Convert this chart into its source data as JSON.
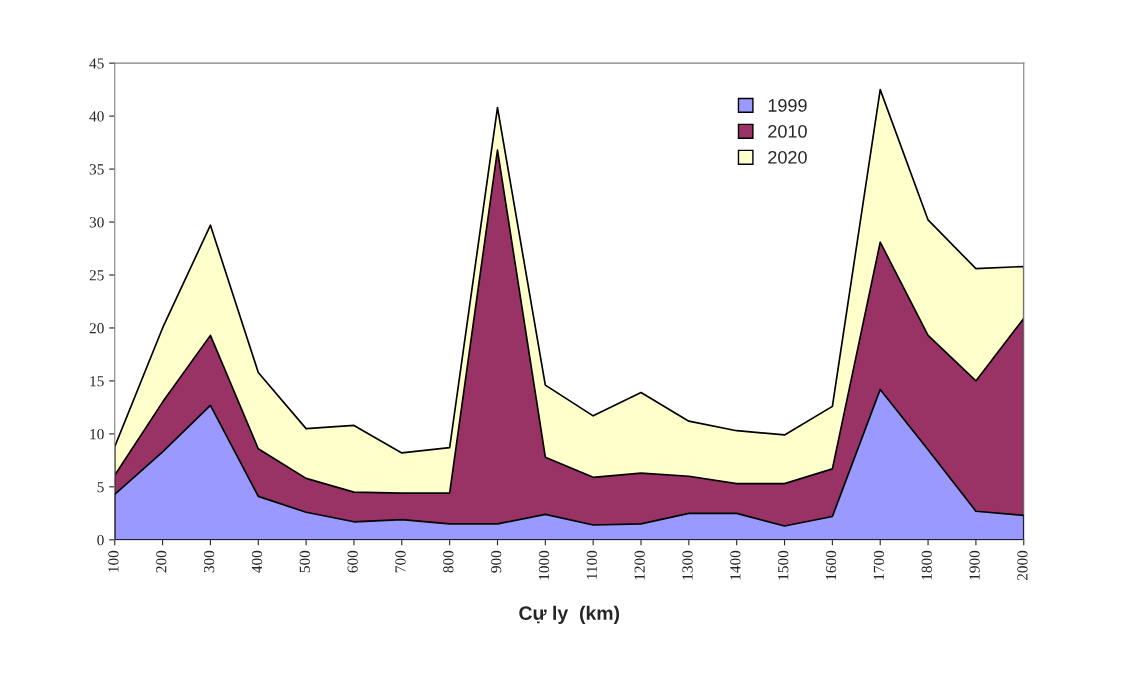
{
  "chart_data": {
    "type": "area",
    "xlabel": "Cự ly  (km)",
    "x": [
      100,
      200,
      300,
      400,
      500,
      600,
      700,
      800,
      900,
      1000,
      1100,
      1200,
      1300,
      1400,
      1500,
      1600,
      1700,
      1800,
      1900,
      2000
    ],
    "xlim": [
      100,
      2000
    ],
    "xticks": [
      100,
      200,
      300,
      400,
      500,
      600,
      700,
      800,
      900,
      1000,
      1100,
      1200,
      1300,
      1400,
      1500,
      1600,
      1700,
      1800,
      1900,
      2000
    ],
    "ylim": [
      0,
      45
    ],
    "yticks": [
      0,
      5,
      10,
      15,
      20,
      25,
      30,
      35,
      40,
      45
    ],
    "grid": false,
    "legend": "top right",
    "series": [
      {
        "name": "1999",
        "color": "#9999ff",
        "values": [
          4.3,
          8.3,
          12.7,
          4.1,
          2.6,
          1.7,
          1.9,
          1.5,
          1.5,
          2.4,
          1.4,
          1.5,
          2.5,
          2.5,
          1.3,
          2.2,
          14.2,
          8.5,
          2.7,
          2.3
        ]
      },
      {
        "name": "2010",
        "color": "#993366",
        "values": [
          6.1,
          13,
          19.3,
          8.6,
          5.8,
          4.5,
          4.4,
          4.4,
          36.8,
          7.8,
          5.9,
          6.3,
          6.0,
          5.3,
          5.3,
          6.7,
          28.1,
          19.3,
          15.0,
          20.9
        ]
      },
      {
        "name": "2020",
        "color": "#ffffcc",
        "values": [
          8.8,
          20,
          29.7,
          15.8,
          10.5,
          10.8,
          8.2,
          8.7,
          40.8,
          14.6,
          11.7,
          13.9,
          11.2,
          10.3,
          9.9,
          12.6,
          42.5,
          30.2,
          25.6,
          25.8
        ]
      }
    ]
  }
}
